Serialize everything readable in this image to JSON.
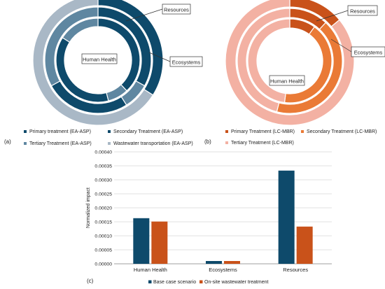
{
  "colors": {
    "dark_blue": "#0e4a6b",
    "steel_blue": "#5f87a1",
    "grey_blue": "#a9b8c6",
    "burnt_orange": "#c9521a",
    "orange": "#ea7a36",
    "peach": "#f3b1a3",
    "gridline": "#d9d9d9"
  },
  "chart_data": [
    {
      "id": "a",
      "panel_label": "(a)",
      "type": "pie",
      "subtype": "multi-ring donut",
      "rings": [
        {
          "name": "Resources",
          "slices": [
            {
              "series": "Primary treatment (EA-ASP)",
              "value": 0.34
            },
            {
              "series": "Wastewater transportation (EA-ASP)",
              "value": 0.66
            }
          ]
        },
        {
          "name": "Ecosystems",
          "slices": [
            {
              "series": "Secondary Treatment (EA-ASP)",
              "value": 0.33
            },
            {
              "series": "Tertiary Treatment (EA-ASP)",
              "value": 0.08
            },
            {
              "series": "Secondary Treatment (EA-ASP)",
              "value": 0.26
            },
            {
              "series": "Tertiary Treatment (EA-ASP)",
              "value": 0.33
            }
          ]
        },
        {
          "name": "Human Health",
          "slices": [
            {
              "series": "Secondary Treatment (EA-ASP)",
              "value": 0.38
            },
            {
              "series": "Tertiary Treatment (EA-ASP)",
              "value": 0.08
            },
            {
              "series": "Secondary Treatment (EA-ASP)",
              "value": 0.38
            },
            {
              "series": "Tertiary Treatment (EA-ASP)",
              "value": 0.16
            }
          ]
        }
      ],
      "annotations": [
        "Resources",
        "Ecosystems",
        "Human Health"
      ],
      "legend": [
        {
          "label": "Primary treatment (EA-ASP)",
          "color": "#0e4a6b"
        },
        {
          "label": "Secondary Treatment (EA-ASP)",
          "color": "#0e4a6b"
        },
        {
          "label": "Tertiary Treatment (EA-ASP)",
          "color": "#5f87a1"
        },
        {
          "label": "Wastewater transportation (EA-ASP)",
          "color": "#a9b8c6"
        }
      ],
      "legend_position": "bottom"
    },
    {
      "id": "b",
      "panel_label": "(b)",
      "type": "pie",
      "subtype": "multi-ring donut",
      "rings": [
        {
          "name": "Resources",
          "slices": [
            {
              "series": "Primary Treatment (LC-MBR)",
              "value": 0.14
            },
            {
              "series": "Tertiary Treatment (LC-MBR)",
              "value": 0.86
            }
          ]
        },
        {
          "name": "Ecosystems",
          "slices": [
            {
              "series": "Primary Treatment (LC-MBR)",
              "value": 0.12
            },
            {
              "series": "Secondary Treatment (LC-MBR)",
              "value": 0.42
            },
            {
              "series": "Tertiary Treatment (LC-MBR)",
              "value": 0.46
            }
          ]
        },
        {
          "name": "Human Health",
          "slices": [
            {
              "series": "Primary Treatment (LC-MBR)",
              "value": 0.1
            },
            {
              "series": "Secondary Treatment (LC-MBR)",
              "value": 0.42
            },
            {
              "series": "Tertiary Treatment (LC-MBR)",
              "value": 0.48
            }
          ]
        }
      ],
      "annotations": [
        "Resources",
        "Ecosystems",
        "Human Health"
      ],
      "legend": [
        {
          "label": "Primary Treatment (LC-MBR)",
          "color": "#c9521a"
        },
        {
          "label": "Secondary Treatment (LC-MBR)",
          "color": "#ea7a36"
        },
        {
          "label": "Tertiary Treatment (LC-MBR)",
          "color": "#f3b1a3"
        }
      ],
      "legend_position": "bottom"
    },
    {
      "id": "c",
      "panel_label": "(c)",
      "type": "bar",
      "categories": [
        "Human Health",
        "Ecosystems",
        "Resources"
      ],
      "series": [
        {
          "name": "Base case scenario",
          "color": "#0e4a6b",
          "values": [
            0.000163,
            1e-05,
            0.000333
          ]
        },
        {
          "name": "On-site wastewater treatment",
          "color": "#c9521a",
          "values": [
            0.000151,
            1e-05,
            0.000133
          ]
        }
      ],
      "ylabel": "Normalized impact",
      "yticks": [
        "0.00000",
        "0.00005",
        "0.00010",
        "0.00015",
        "0.00020",
        "0.00025",
        "0.00030",
        "0.00035",
        "0.00040"
      ],
      "ylim": [
        0,
        0.0004
      ],
      "grid": true,
      "legend_position": "bottom"
    }
  ]
}
